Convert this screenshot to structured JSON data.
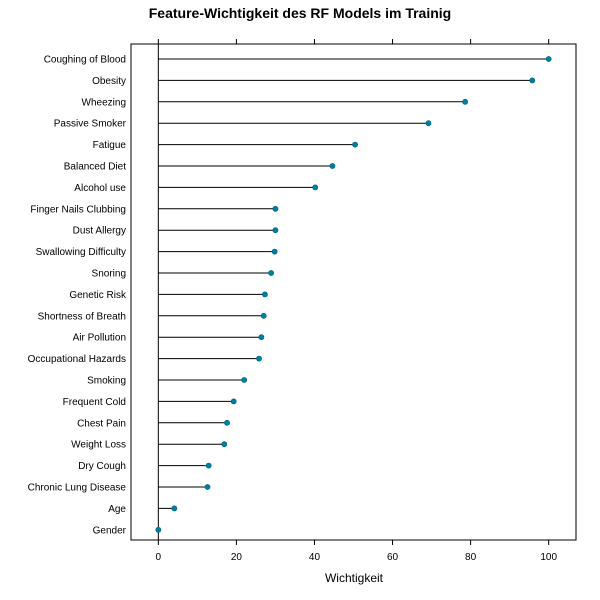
{
  "chart_data": {
    "type": "lollipop",
    "title": "Feature-Wichtigkeit des RF Models im Trainig",
    "xlabel": "Wichtigkeit",
    "ylabel": "",
    "xlim": [
      -7,
      107
    ],
    "x_ticks": [
      0,
      20,
      40,
      60,
      80,
      100
    ],
    "x_tick_labels": [
      "0",
      "20",
      "40",
      "60",
      "80",
      "100"
    ],
    "grid": false,
    "point_color": "#0080A0",
    "categories": [
      "Coughing of Blood",
      "Obesity",
      "Wheezing",
      "Passive Smoker",
      "Fatigue",
      "Balanced Diet",
      "Alcohol use",
      "Finger Nails Clubbing",
      "Dust Allergy",
      "Swallowing Difficulty",
      "Snoring",
      "Genetic Risk",
      "Shortness of Breath",
      "Air Pollution",
      "Occupational Hazards",
      "Smoking",
      "Frequent Cold",
      "Chest Pain",
      "Weight Loss",
      "Dry Cough",
      "Chronic Lung Disease",
      "Age",
      "Gender"
    ],
    "values": [
      100,
      95.8,
      78.6,
      69.2,
      50.4,
      44.6,
      40.2,
      30.0,
      30.0,
      29.8,
      28.9,
      27.3,
      27.0,
      26.4,
      25.8,
      22.0,
      19.3,
      17.6,
      16.9,
      12.9,
      12.6,
      4.1,
      0
    ]
  }
}
